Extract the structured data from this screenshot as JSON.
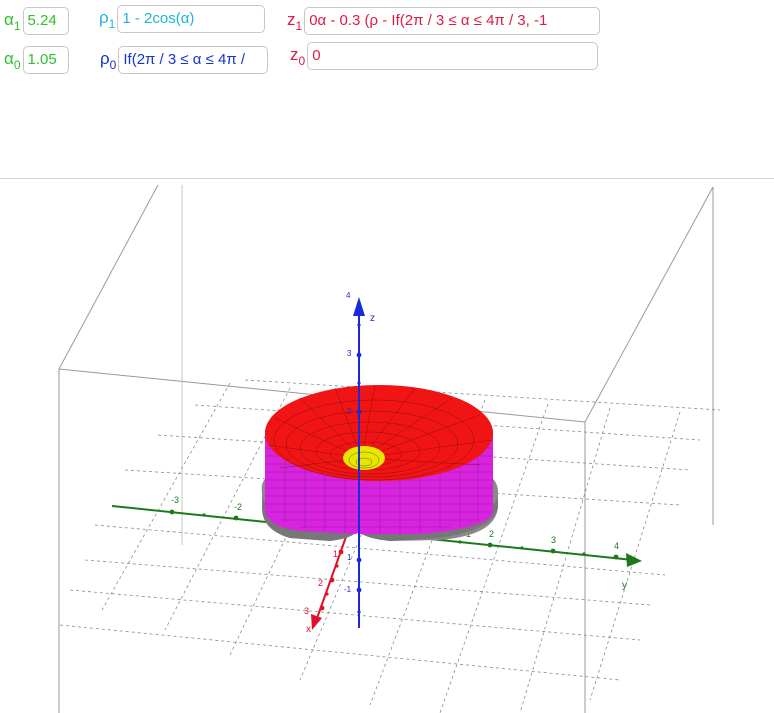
{
  "inputs": {
    "alpha1": {
      "symbol": "α",
      "sub": "1",
      "value": "5.24"
    },
    "alpha0": {
      "symbol": "α",
      "sub": "0",
      "value": "1.05"
    },
    "rho1": {
      "symbol": "ρ",
      "sub": "1",
      "value": "1 - 2cos(α)"
    },
    "rho0": {
      "symbol": "ρ",
      "sub": "0",
      "value": "If(2π / 3 ≤ α ≤ 4π /"
    },
    "z1": {
      "symbol": "z",
      "sub": "1",
      "value": "0α - 0.3 (ρ - If(2π / 3 ≤ α ≤ 4π / 3, -1"
    },
    "z0": {
      "symbol": "z",
      "sub": "0",
      "value": "0"
    }
  },
  "axes": {
    "x_label": "x",
    "y_label": "y",
    "z_label": "z",
    "x_ticks": [
      "1",
      "2",
      "3"
    ],
    "y_ticks": [
      "-3",
      "-2",
      "1",
      "2",
      "3",
      "4"
    ],
    "z_ticks": [
      "-1",
      "1",
      "2",
      "3",
      "4"
    ]
  },
  "colors": {
    "alpha": "#2ec12e",
    "rho1": "#1fb5d8",
    "rho0": "#1536ca",
    "z": "#e01a46",
    "x_axis": "#e0102a",
    "y_axis": "#1a7a1a",
    "z_axis": "#1a2ad8",
    "surface_top": "#f01414",
    "surface_side": "#d824e0",
    "surface_inner": "#e6e600",
    "base": "#8a8a8a"
  }
}
